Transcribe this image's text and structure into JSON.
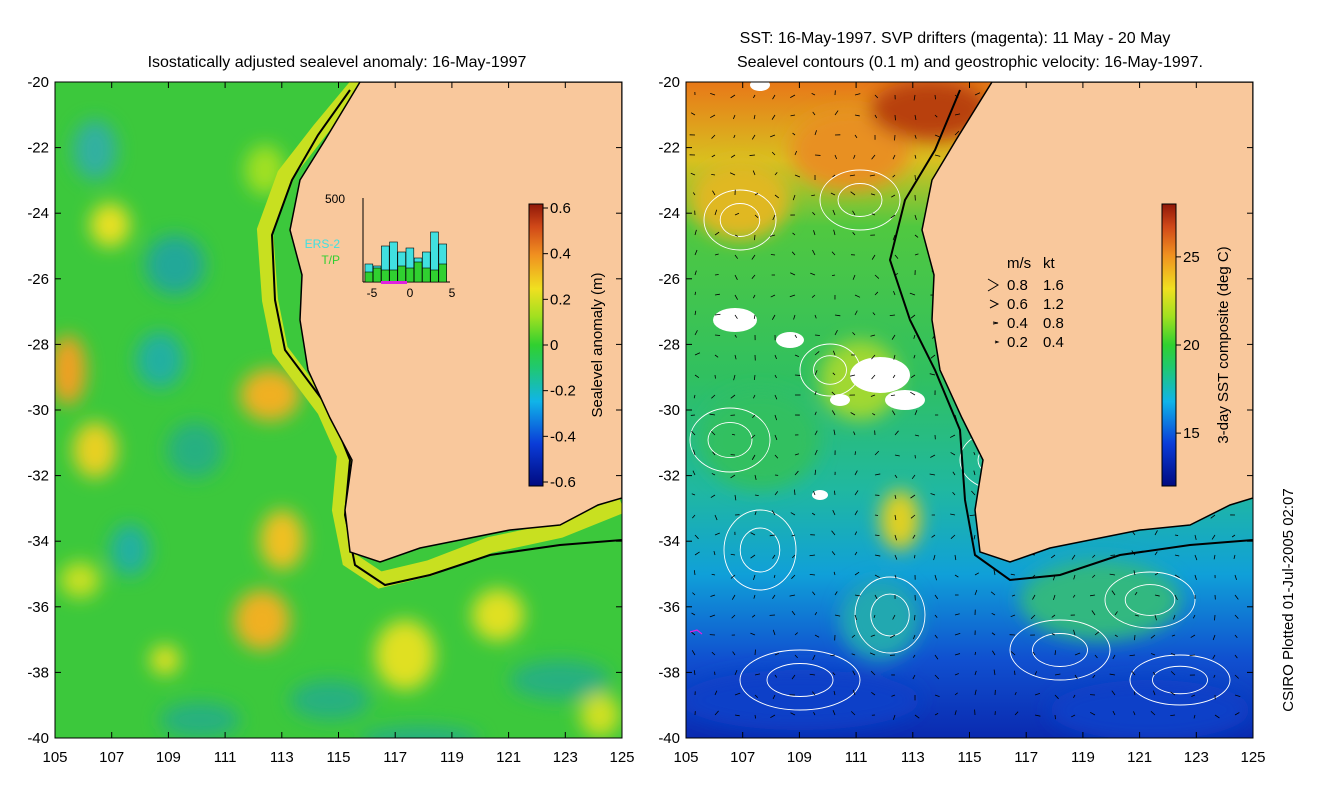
{
  "left_panel": {
    "title": "Isostatically adjusted sealevel anomaly: 16-May-1997",
    "colorbar": {
      "label": "Sealevel anomaly (m)",
      "ticks": [
        "0.6",
        "0.4",
        "0.2",
        "0",
        "-0.2",
        "-0.4",
        "-0.6"
      ]
    },
    "inset": {
      "ymax_label": "500",
      "x_ticks": [
        "-5",
        "0",
        "5"
      ],
      "legend": [
        {
          "label": "ERS-2",
          "color": "#40e0e0"
        },
        {
          "label": "T/P",
          "color": "#30d030"
        }
      ]
    }
  },
  "right_panel": {
    "title_line1": "SST: 16-May-1997. SVP drifters (magenta): 11 May - 20 May",
    "title_line2": "Sealevel contours (0.1 m) and geostrophic velocity: 16-May-1997.",
    "colorbar": {
      "label": "3-day SST composite (deg C)",
      "ticks": [
        "25",
        "20",
        "15"
      ]
    },
    "velocity_key": {
      "header_ms": "m/s",
      "header_kt": "kt",
      "rows": [
        {
          "ms": "0.8",
          "kt": "1.6"
        },
        {
          "ms": "0.6",
          "kt": "1.2"
        },
        {
          "ms": "0.4",
          "kt": "0.8"
        },
        {
          "ms": "0.2",
          "kt": "0.4"
        }
      ]
    }
  },
  "axes": {
    "y_ticks": [
      "-20",
      "-22",
      "-24",
      "-26",
      "-28",
      "-30",
      "-32",
      "-34",
      "-36",
      "-38",
      "-40"
    ],
    "x_ticks": [
      "105",
      "107",
      "109",
      "111",
      "113",
      "115",
      "117",
      "119",
      "121",
      "123",
      "125"
    ],
    "lon_range": [
      105,
      125
    ],
    "lat_range": [
      -40,
      -20
    ]
  },
  "credit": "CSIRO Plotted 01-Jul-2005 02:07",
  "colors": {
    "land": "#f9c89c",
    "ocean_base": "#3cc83c",
    "warm": "#c84818",
    "cold": "#1030c0"
  }
}
